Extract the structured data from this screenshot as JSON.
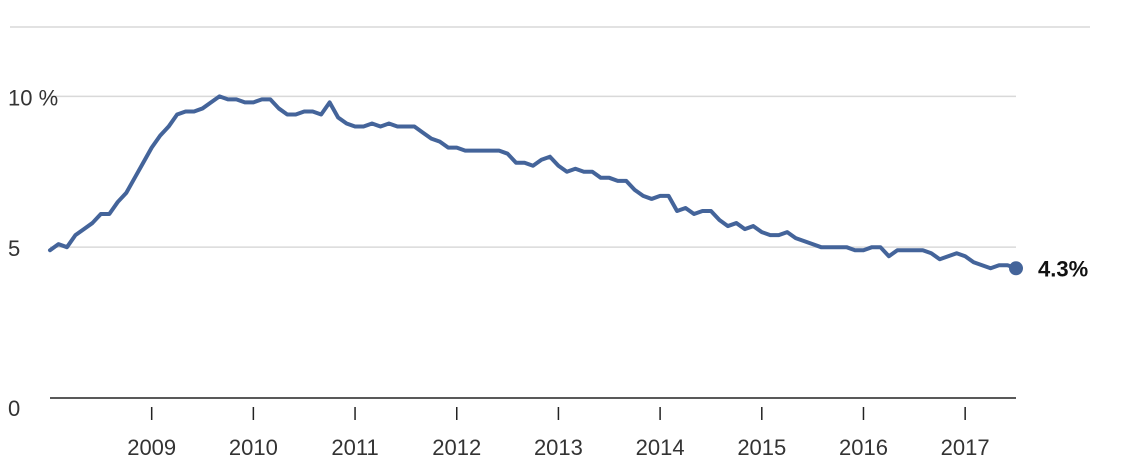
{
  "chart_data": {
    "type": "line",
    "title": "",
    "xlabel": "",
    "ylabel": "",
    "ylim": [
      0,
      12.3
    ],
    "xlim": [
      "2008-01",
      "2017-07"
    ],
    "y_ticks": [
      {
        "value": 0,
        "label": "0"
      },
      {
        "value": 5,
        "label": "5"
      },
      {
        "value": 10,
        "label": "10 %"
      }
    ],
    "x_ticks": [
      {
        "value": "2009-01",
        "label": "2009"
      },
      {
        "value": "2010-01",
        "label": "2010"
      },
      {
        "value": "2011-01",
        "label": "2011"
      },
      {
        "value": "2012-01",
        "label": "2012"
      },
      {
        "value": "2013-01",
        "label": "2013"
      },
      {
        "value": "2014-01",
        "label": "2014"
      },
      {
        "value": "2015-01",
        "label": "2015"
      },
      {
        "value": "2016-01",
        "label": "2016"
      },
      {
        "value": "2017-01",
        "label": "2017"
      }
    ],
    "grid": true,
    "series": [
      {
        "color": "#44649a",
        "x": [
          "2008-01",
          "2008-02",
          "2008-03",
          "2008-04",
          "2008-05",
          "2008-06",
          "2008-07",
          "2008-08",
          "2008-09",
          "2008-10",
          "2008-11",
          "2008-12",
          "2009-01",
          "2009-02",
          "2009-03",
          "2009-04",
          "2009-05",
          "2009-06",
          "2009-07",
          "2009-08",
          "2009-09",
          "2009-10",
          "2009-11",
          "2009-12",
          "2010-01",
          "2010-02",
          "2010-03",
          "2010-04",
          "2010-05",
          "2010-06",
          "2010-07",
          "2010-08",
          "2010-09",
          "2010-10",
          "2010-11",
          "2010-12",
          "2011-01",
          "2011-02",
          "2011-03",
          "2011-04",
          "2011-05",
          "2011-06",
          "2011-07",
          "2011-08",
          "2011-09",
          "2011-10",
          "2011-11",
          "2011-12",
          "2012-01",
          "2012-02",
          "2012-03",
          "2012-04",
          "2012-05",
          "2012-06",
          "2012-07",
          "2012-08",
          "2012-09",
          "2012-10",
          "2012-11",
          "2012-12",
          "2013-01",
          "2013-02",
          "2013-03",
          "2013-04",
          "2013-05",
          "2013-06",
          "2013-07",
          "2013-08",
          "2013-09",
          "2013-10",
          "2013-11",
          "2013-12",
          "2014-01",
          "2014-02",
          "2014-03",
          "2014-04",
          "2014-05",
          "2014-06",
          "2014-07",
          "2014-08",
          "2014-09",
          "2014-10",
          "2014-11",
          "2014-12",
          "2015-01",
          "2015-02",
          "2015-03",
          "2015-04",
          "2015-05",
          "2015-06",
          "2015-07",
          "2015-08",
          "2015-09",
          "2015-10",
          "2015-11",
          "2015-12",
          "2016-01",
          "2016-02",
          "2016-03",
          "2016-04",
          "2016-05",
          "2016-06",
          "2016-07",
          "2016-08",
          "2016-09",
          "2016-10",
          "2016-11",
          "2016-12",
          "2017-01",
          "2017-02",
          "2017-03",
          "2017-04",
          "2017-05",
          "2017-06",
          "2017-07"
        ],
        "values": [
          4.9,
          5.1,
          5.0,
          5.4,
          5.6,
          5.8,
          6.1,
          6.1,
          6.5,
          6.8,
          7.3,
          7.8,
          8.3,
          8.7,
          9.0,
          9.4,
          9.5,
          9.5,
          9.6,
          9.8,
          10.0,
          9.9,
          9.9,
          9.8,
          9.8,
          9.9,
          9.9,
          9.6,
          9.4,
          9.4,
          9.5,
          9.5,
          9.4,
          9.8,
          9.3,
          9.1,
          9.0,
          9.0,
          9.1,
          9.0,
          9.1,
          9.0,
          9.0,
          9.0,
          8.8,
          8.6,
          8.5,
          8.3,
          8.3,
          8.2,
          8.2,
          8.2,
          8.2,
          8.2,
          8.1,
          7.8,
          7.8,
          7.7,
          7.9,
          8.0,
          7.7,
          7.5,
          7.6,
          7.5,
          7.5,
          7.3,
          7.3,
          7.2,
          7.2,
          6.9,
          6.7,
          6.6,
          6.7,
          6.7,
          6.2,
          6.3,
          6.1,
          6.2,
          6.2,
          5.9,
          5.7,
          5.8,
          5.6,
          5.7,
          5.5,
          5.4,
          5.4,
          5.5,
          5.3,
          5.2,
          5.1,
          5.0,
          5.0,
          5.0,
          5.0,
          4.9,
          4.9,
          5.0,
          5.0,
          4.7,
          4.9,
          4.9,
          4.9,
          4.9,
          4.8,
          4.6,
          4.7,
          4.8,
          4.7,
          4.5,
          4.4,
          4.3,
          4.4,
          4.4,
          4.3
        ]
      }
    ],
    "end_label": "4.3%"
  }
}
